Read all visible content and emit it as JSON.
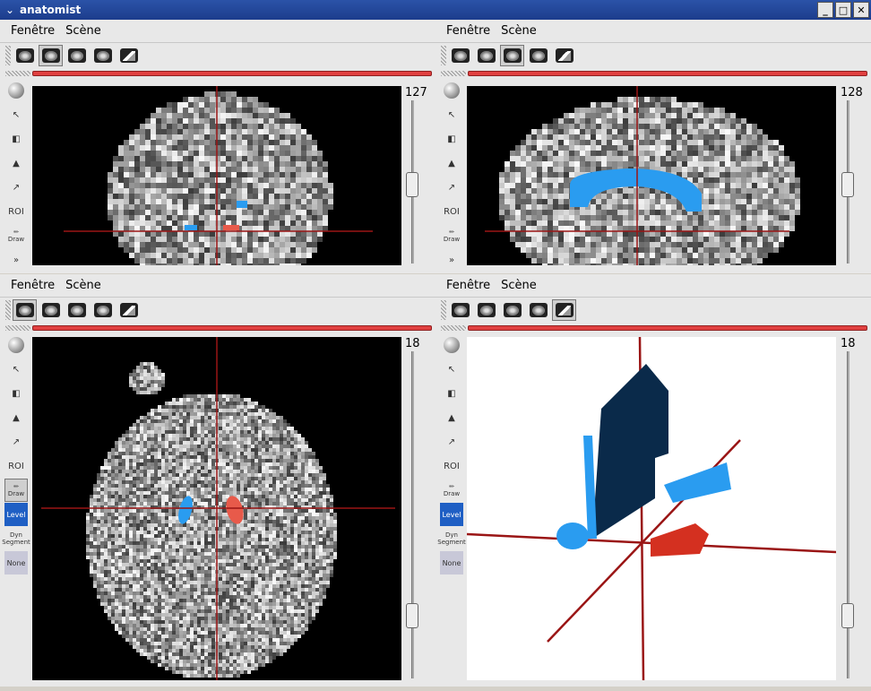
{
  "window": {
    "title": "anatomist"
  },
  "panes": [
    {
      "id": "coronal",
      "menu": [
        "Fenêtre",
        "Scène"
      ],
      "slice": "127",
      "active_tool": 1,
      "active_side": -1
    },
    {
      "id": "sagittal",
      "menu": [
        "Fenêtre",
        "Scène"
      ],
      "slice": "128",
      "active_tool": 2,
      "active_side": -1
    },
    {
      "id": "axial",
      "menu": [
        "Fenêtre",
        "Scène"
      ],
      "slice": "18",
      "active_tool": 0,
      "active_side": 6
    },
    {
      "id": "3d",
      "menu": [
        "Fenêtre",
        "Scène"
      ],
      "slice": "18",
      "active_tool": 4,
      "active_side": -1
    }
  ],
  "toolbar_icons": [
    "view-coronal-icon",
    "view-axial-icon",
    "view-sagittal-icon",
    "view-axial2-icon",
    "view-3d-icon"
  ],
  "side_tools": {
    "labels": {
      "roi": "ROI",
      "draw": "Draw",
      "level": "Level",
      "dyn": "Dyn",
      "segment": "Segment",
      "none": "None"
    }
  },
  "colors": {
    "cursor": "#9a1515",
    "blue_roi": "#2a9cf0",
    "red_roi": "#e85a4a",
    "navy_roi": "#0a2a4a",
    "red3d": "#d43020"
  }
}
